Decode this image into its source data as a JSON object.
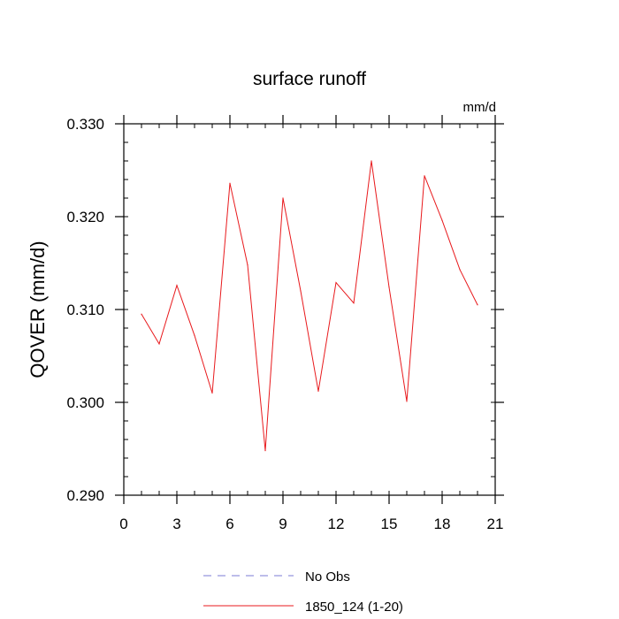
{
  "chart_data": {
    "type": "line",
    "title": "surface runoff",
    "units_label": "mm/d",
    "ylabel": "QOVER  (mm/d)",
    "xlabel": "",
    "xlim": [
      0,
      21
    ],
    "ylim": [
      0.29,
      0.33
    ],
    "x_ticks": [
      0,
      3,
      6,
      9,
      12,
      15,
      18,
      21
    ],
    "x_tick_labels": [
      "0",
      "3",
      "6",
      "9",
      "12",
      "15",
      "18",
      "21"
    ],
    "y_ticks": [
      0.29,
      0.3,
      0.31,
      0.32,
      0.33
    ],
    "y_tick_labels": [
      "0.290",
      "0.300",
      "0.310",
      "0.320",
      "0.330"
    ],
    "grid": false,
    "legend_position": "bottom",
    "series": [
      {
        "name": "1850_124 (1-20)",
        "color": "#e8191c",
        "dash": "solid",
        "x": [
          1,
          2,
          3,
          4,
          5,
          6,
          7,
          8,
          9,
          10,
          11,
          12,
          13,
          14,
          15,
          16,
          17,
          18,
          19,
          20
        ],
        "values": [
          0.3095,
          0.3063,
          0.3126,
          0.3072,
          0.301,
          0.3236,
          0.3148,
          0.2948,
          0.322,
          0.312,
          0.3012,
          0.3129,
          0.3107,
          0.326,
          0.3124,
          0.3001,
          0.3244,
          0.3196,
          0.3143,
          0.3105
        ]
      }
    ],
    "legend": [
      {
        "label": "No Obs",
        "color": "#7b7bd6",
        "dash": "dashed"
      },
      {
        "label": "1850_124 (1-20)",
        "color": "#e8191c",
        "dash": "solid"
      }
    ]
  }
}
